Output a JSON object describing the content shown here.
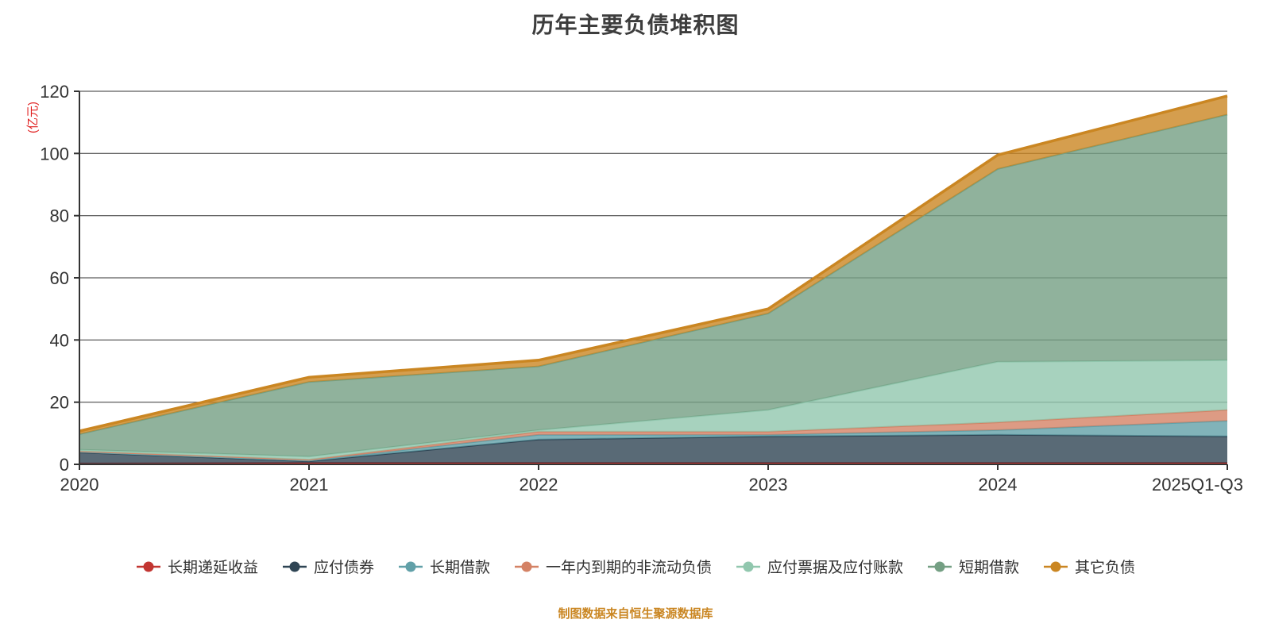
{
  "title": "历年主要负债堆积图",
  "y_axis": {
    "name": "(亿元)",
    "name_color": "#e01f1f"
  },
  "footer": {
    "text": "制图数据来自恒生聚源数据库",
    "color": "#ca8622"
  },
  "style": {
    "axis_color": "#333333",
    "grid_color": "#333333",
    "label_color": "#333333"
  },
  "chart_data": {
    "type": "area",
    "stacked": true,
    "grid": true,
    "legend_position": "bottom",
    "x": [
      "2020",
      "2021",
      "2022",
      "2023",
      "2024",
      "2025Q1-Q3"
    ],
    "ylim": [
      0,
      120
    ],
    "y_ticks": [
      0,
      20,
      40,
      60,
      80,
      100,
      120
    ],
    "ylabel": "(亿元)",
    "title": "历年主要负债堆积图",
    "series": [
      {
        "name": "长期递延收益",
        "color": "#c23531",
        "values": [
          0.3,
          0.5,
          0.5,
          0.5,
          0.5,
          0.5
        ]
      },
      {
        "name": "应付债券",
        "color": "#2f4554",
        "values": [
          3.5,
          0.5,
          7.5,
          8.5,
          9.0,
          8.5
        ]
      },
      {
        "name": "长期借款",
        "color": "#61a0a8",
        "values": [
          0.2,
          0.2,
          1.5,
          0.5,
          1.5,
          5.0
        ]
      },
      {
        "name": "一年内到期的非流动负债",
        "color": "#d48265",
        "values": [
          0.2,
          0.3,
          1.0,
          1.0,
          2.5,
          3.5
        ]
      },
      {
        "name": "应付票据及应付账款",
        "color": "#91c7ae",
        "values": [
          0.5,
          1.0,
          0.5,
          7.0,
          19.5,
          16.0
        ]
      },
      {
        "name": "短期借款",
        "color": "#749f83",
        "values": [
          5.0,
          24.0,
          20.5,
          31.0,
          62.0,
          79.0
        ]
      },
      {
        "name": "其它负债",
        "color": "#ca8622",
        "values": [
          1.0,
          1.5,
          2.0,
          1.5,
          4.5,
          6.0
        ]
      }
    ]
  }
}
